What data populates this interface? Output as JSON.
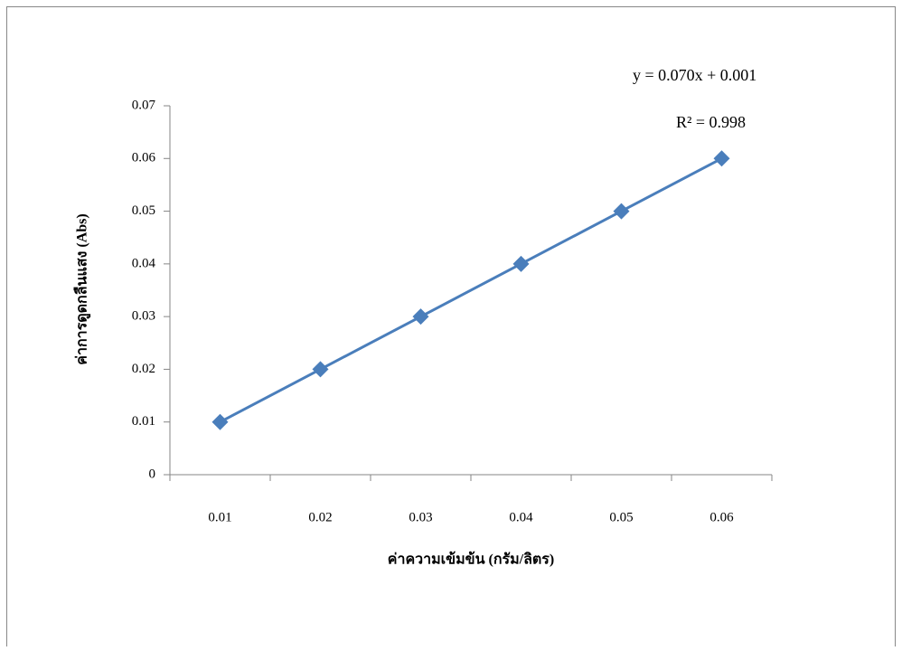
{
  "chart_data": {
    "type": "line",
    "categories": [
      "0.01",
      "0.02",
      "0.03",
      "0.04",
      "0.05",
      "0.06"
    ],
    "values": [
      0.01,
      0.02,
      0.03,
      0.04,
      0.05,
      0.06
    ],
    "color": "#4a7ebb",
    "ylim": [
      0,
      0.07
    ],
    "yticks": [
      0,
      0.01,
      0.02,
      0.03,
      0.04,
      0.05,
      0.06,
      0.07
    ],
    "x_label": "ค่าความเข้มข้น (กรัม/ลิตร)",
    "y_label": "ค่าการดูดกลืนแสง (Abs)",
    "annotations": [
      "y = 0.070x + 0.001",
      "R² =  0.998"
    ]
  }
}
